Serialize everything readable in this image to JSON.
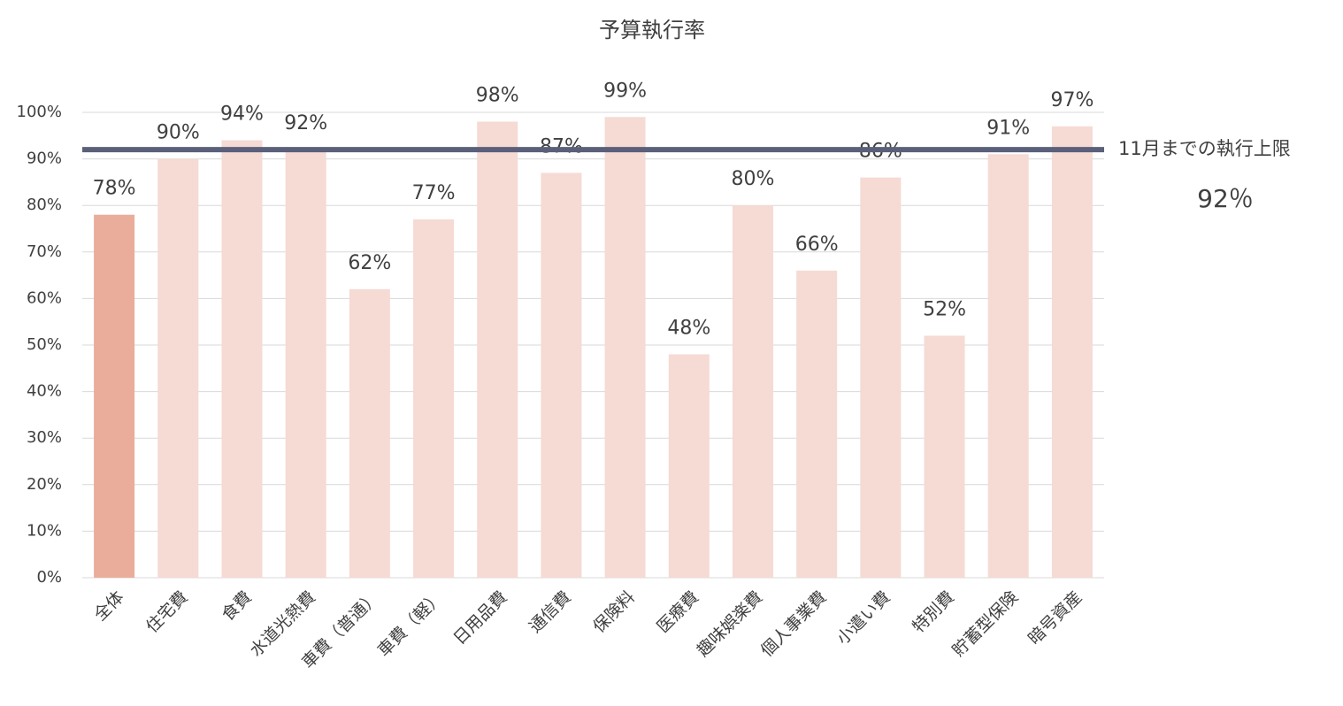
{
  "chart_data": {
    "type": "bar",
    "title": "予算執行率",
    "categories": [
      "全体",
      "住宅費",
      "食費",
      "水道光熱費",
      "車費（普通）",
      "車費（軽）",
      "日用品費",
      "通信費",
      "保険料",
      "医療費",
      "趣味娯楽費",
      "個人事業費",
      "小遣い費",
      "特別費",
      "貯蓄型保険",
      "暗号資産"
    ],
    "values": [
      78,
      90,
      94,
      92,
      62,
      77,
      98,
      87,
      99,
      48,
      80,
      66,
      86,
      52,
      91,
      97
    ],
    "value_labels": [
      "78%",
      "90%",
      "94%",
      "92%",
      "62%",
      "77%",
      "98%",
      "87%",
      "99%",
      "48%",
      "80%",
      "66%",
      "86%",
      "52%",
      "91%",
      "97%"
    ],
    "colors": [
      "#eaad9b",
      "#f6dad4",
      "#f6dad4",
      "#f6dad4",
      "#f6dad4",
      "#f6dad4",
      "#f6dad4",
      "#f6dad4",
      "#f6dad4",
      "#f6dad4",
      "#f6dad4",
      "#f6dad4",
      "#f6dad4",
      "#f6dad4",
      "#f6dad4",
      "#f6dad4"
    ],
    "ylim": [
      0,
      100
    ],
    "yticks": [
      {
        "value": 0,
        "label": "0%"
      },
      {
        "value": 10,
        "label": "10%"
      },
      {
        "value": 20,
        "label": "20%"
      },
      {
        "value": 30,
        "label": "30%"
      },
      {
        "value": 40,
        "label": "40%"
      },
      {
        "value": 50,
        "label": "50%"
      },
      {
        "value": 60,
        "label": "60%"
      },
      {
        "value": 70,
        "label": "70%"
      },
      {
        "value": 80,
        "label": "80%"
      },
      {
        "value": 90,
        "label": "90%"
      },
      {
        "value": 100,
        "label": "100%"
      }
    ],
    "grid": true,
    "reference_line": {
      "value": 92,
      "label": "11月までの執行上限",
      "value_label": "92％",
      "color": "#5a6079",
      "label_color": "#c00000"
    }
  }
}
